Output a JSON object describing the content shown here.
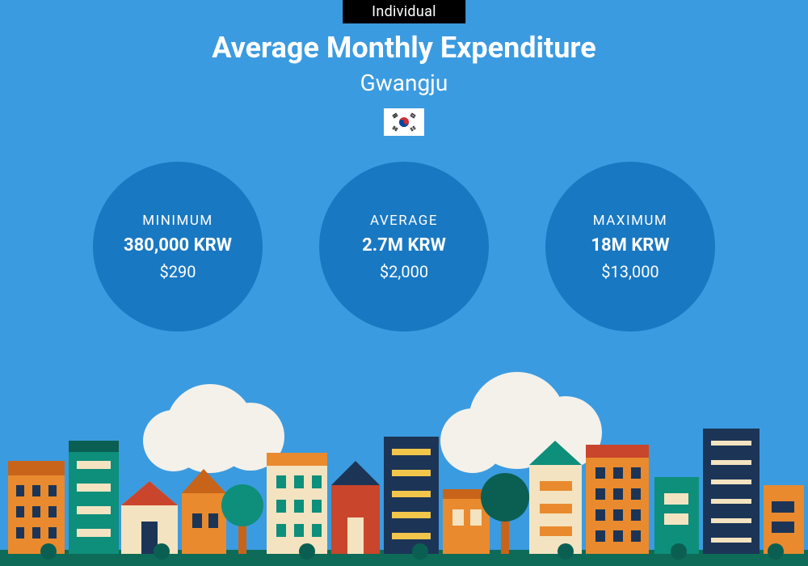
{
  "colors": {
    "background": "#3b9be0",
    "badge_bg": "#000000",
    "badge_text": "#ffffff",
    "text": "#ffffff",
    "circle_fill": "#1978c2",
    "city": {
      "ground": "#0e6b57",
      "cloud": "#f4f1ea",
      "orange": "#e98a2e",
      "dark_orange": "#c8641a",
      "teal": "#0d8f7b",
      "dark_teal": "#0b5f52",
      "navy": "#1c3557",
      "cream": "#f3e3c0",
      "red": "#c9452b",
      "yellow": "#f2c54b"
    }
  },
  "badge": "Individual",
  "title": "Average Monthly Expenditure",
  "subtitle": "Gwangju",
  "flag": "south-korea",
  "stats": [
    {
      "label": "MINIMUM",
      "main": "380,000 KRW",
      "usd": "$290"
    },
    {
      "label": "AVERAGE",
      "main": "2.7M KRW",
      "usd": "$2,000"
    },
    {
      "label": "MAXIMUM",
      "main": "18M KRW",
      "usd": "$13,000"
    }
  ]
}
